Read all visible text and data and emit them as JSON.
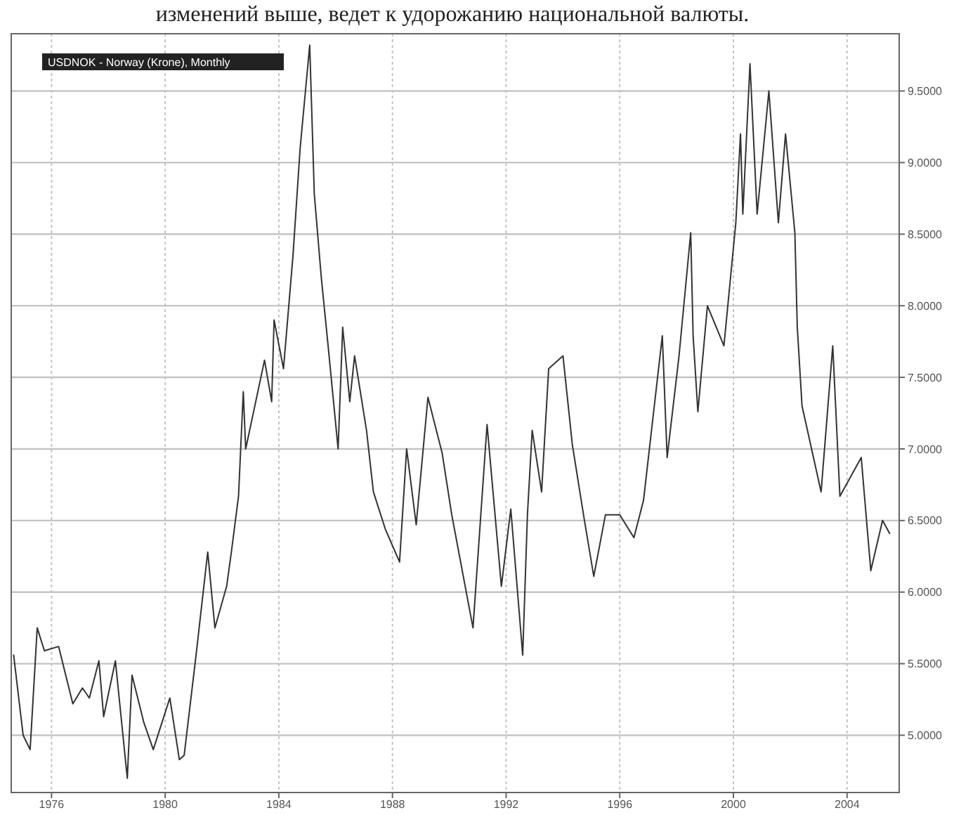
{
  "chart_data": {
    "type": "line",
    "title": "USDNOK - Norway (Krone), Monthly",
    "annotations": [
      "изменений выше, ведет к удорожанию национальной валюты."
    ],
    "x": [
      "1974-09",
      "1975-01",
      "1975-04",
      "1975-07",
      "1975-10",
      "1976-04",
      "1976-10",
      "1977-02",
      "1977-05",
      "1977-09",
      "1977-11",
      "1978-04",
      "1978-09",
      "1978-11",
      "1979-04",
      "1979-08",
      "1980-03",
      "1980-07",
      "1980-09",
      "1981-02",
      "1981-07",
      "1981-10",
      "1982-03",
      "1982-05",
      "1982-08",
      "1982-10",
      "1982-11",
      "1983-07",
      "1983-10",
      "1983-11",
      "1984-03",
      "1984-07",
      "1984-10",
      "1985-02",
      "1985-04",
      "1985-07",
      "1985-10",
      "1986-02",
      "1986-04",
      "1986-07",
      "1986-09",
      "1987-02",
      "1987-05",
      "1987-10",
      "1988-04",
      "1988-07",
      "1988-11",
      "1989-04",
      "1989-10",
      "1990-02",
      "1990-11",
      "1991-05",
      "1991-11",
      "1992-03",
      "1992-08",
      "1992-10",
      "1992-12",
      "1993-04",
      "1993-07",
      "1994-01",
      "1994-05",
      "1994-10",
      "1995-02",
      "1995-07",
      "1996-01",
      "1996-07",
      "1996-11",
      "1997-07",
      "1997-09",
      "1998-02",
      "1998-07",
      "1998-08",
      "1998-10",
      "1999-02",
      "1999-09",
      "2000-02",
      "2000-04",
      "2000-05",
      "2000-08",
      "2000-11",
      "2001-04",
      "2001-08",
      "2001-11",
      "2002-03",
      "2002-04",
      "2002-06",
      "2003-02",
      "2003-07",
      "2003-10",
      "2004-07",
      "2004-11",
      "2005-04",
      "2005-07"
    ],
    "series": [
      {
        "color": "#333333",
        "values": [
          5.56,
          5.0,
          4.9,
          5.75,
          5.59,
          5.62,
          5.22,
          5.33,
          5.26,
          5.52,
          5.13,
          5.52,
          4.7,
          5.42,
          5.09,
          4.9,
          5.26,
          4.83,
          4.86,
          5.56,
          6.28,
          5.75,
          6.04,
          6.28,
          6.67,
          7.4,
          7.0,
          7.62,
          7.33,
          7.9,
          7.56,
          8.35,
          9.1,
          9.82,
          8.78,
          8.19,
          7.69,
          7.0,
          7.85,
          7.33,
          7.65,
          7.13,
          6.7,
          6.44,
          6.21,
          7.0,
          6.47,
          7.36,
          6.97,
          6.54,
          5.75,
          7.17,
          6.04,
          6.58,
          5.56,
          6.54,
          7.13,
          6.7,
          7.56,
          7.65,
          7.03,
          6.51,
          6.11,
          6.54,
          6.54,
          6.38,
          6.64,
          7.79,
          6.94,
          7.65,
          8.51,
          7.79,
          7.26,
          8.0,
          7.72,
          8.58,
          9.2,
          8.64,
          9.69,
          8.64,
          9.5,
          8.58,
          9.2,
          8.51,
          7.85,
          7.3,
          6.7,
          7.72,
          6.67,
          6.94,
          6.15,
          6.5,
          6.41
        ]
      }
    ],
    "xlim": [
      "1974-08",
      "2005-11"
    ],
    "xticks": [
      "1976",
      "1980",
      "1984",
      "1988",
      "1992",
      "1996",
      "2000",
      "2004"
    ],
    "ylim": [
      4.6,
      9.9
    ],
    "yticks": [
      {
        "value": 5,
        "label": "5.0000"
      },
      {
        "value": 5.5,
        "label": "5.5000"
      },
      {
        "value": 6,
        "label": "6.0000"
      },
      {
        "value": 6.5,
        "label": "6.5000"
      },
      {
        "value": 7,
        "label": "7.0000"
      },
      {
        "value": 7.5,
        "label": "7.5000"
      },
      {
        "value": 8,
        "label": "8.0000"
      },
      {
        "value": 8.5,
        "label": "8.5000"
      },
      {
        "value": 9,
        "label": "9.0000"
      },
      {
        "value": 9.5,
        "label": "9.5000"
      }
    ],
    "grid": true,
    "line_style": "solid",
    "marker": "none"
  }
}
